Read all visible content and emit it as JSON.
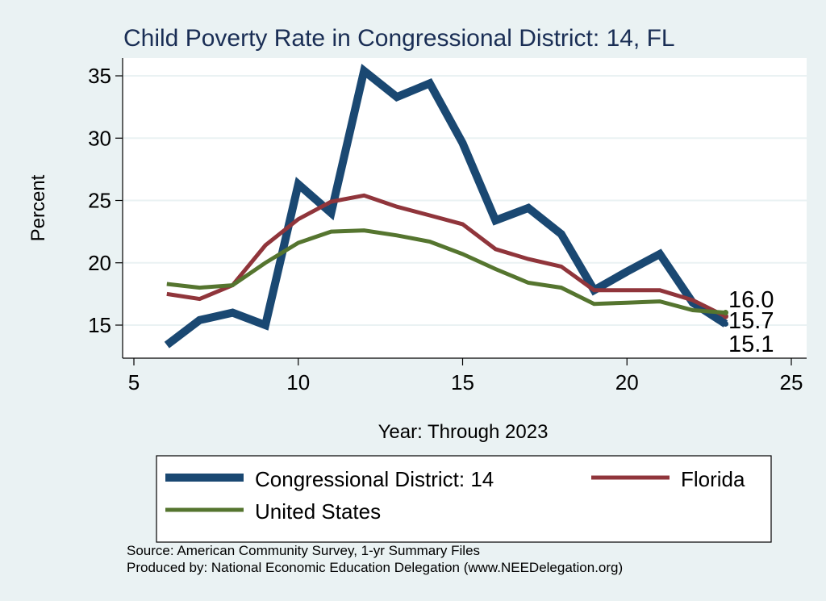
{
  "chart_data": {
    "type": "line",
    "title": "Child Poverty Rate in Congressional District:  14, FL",
    "xlabel": "Year: Through 2023",
    "ylabel": "Percent",
    "xlim": [
      5,
      25
    ],
    "ylim": [
      12.5,
      36.5
    ],
    "xticks": [
      5,
      10,
      15,
      20,
      25
    ],
    "yticks": [
      15,
      20,
      25,
      30,
      35
    ],
    "grid": "horizontal",
    "legend_position": "bottom",
    "x": [
      6,
      7,
      8,
      9,
      10,
      11,
      12,
      13,
      14,
      15,
      16,
      17,
      18,
      19,
      20,
      21,
      22,
      23
    ],
    "series": [
      {
        "name": "Congressional District:  14",
        "color": "#1a4872",
        "width": "thick",
        "values": [
          13.4,
          15.4,
          16.0,
          15.0,
          26.3,
          24.0,
          35.4,
          33.3,
          34.4,
          29.6,
          23.4,
          24.4,
          22.3,
          17.8,
          19.3,
          20.7,
          16.8,
          15.1
        ]
      },
      {
        "name": "Florida",
        "color": "#90353b",
        "width": "medium",
        "values": [
          17.5,
          17.1,
          18.2,
          21.4,
          23.5,
          24.9,
          25.4,
          24.5,
          23.8,
          23.1,
          21.1,
          20.3,
          19.7,
          17.8,
          17.8,
          17.8,
          17.0,
          15.7
        ]
      },
      {
        "name": "United States",
        "color": "#55752f",
        "width": "medium",
        "values": [
          18.3,
          18.0,
          18.2,
          20.0,
          21.6,
          22.5,
          22.6,
          22.2,
          21.7,
          20.7,
          19.5,
          18.4,
          18.0,
          16.7,
          16.8,
          16.9,
          16.2,
          16.0
        ]
      }
    ],
    "end_labels": [
      "16.0",
      "15.7",
      "15.1"
    ],
    "annotations": [
      "Source: American Community Survey, 1-yr Summary Files",
      "Produced by: National Economic Education Delegation (www.NEEDelegation.org)"
    ]
  }
}
